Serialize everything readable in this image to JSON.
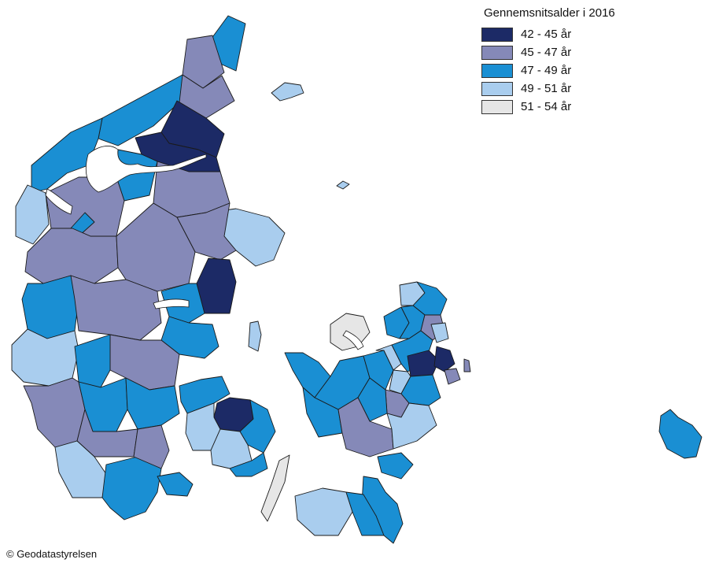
{
  "legend": {
    "title": "Gennemsnitsalder i 2016",
    "classes": [
      {
        "label": "42 - 45 år",
        "color": "#1c2a66"
      },
      {
        "label": "45 - 47 år",
        "color": "#8589b8"
      },
      {
        "label": "47 - 49 år",
        "color": "#1a8fd3"
      },
      {
        "label": "49 - 51 år",
        "color": "#a9cdee"
      },
      {
        "label": "51 - 54 år",
        "color": "#e6e6e6"
      }
    ]
  },
  "credit": "© Geodatastyrelsen"
}
